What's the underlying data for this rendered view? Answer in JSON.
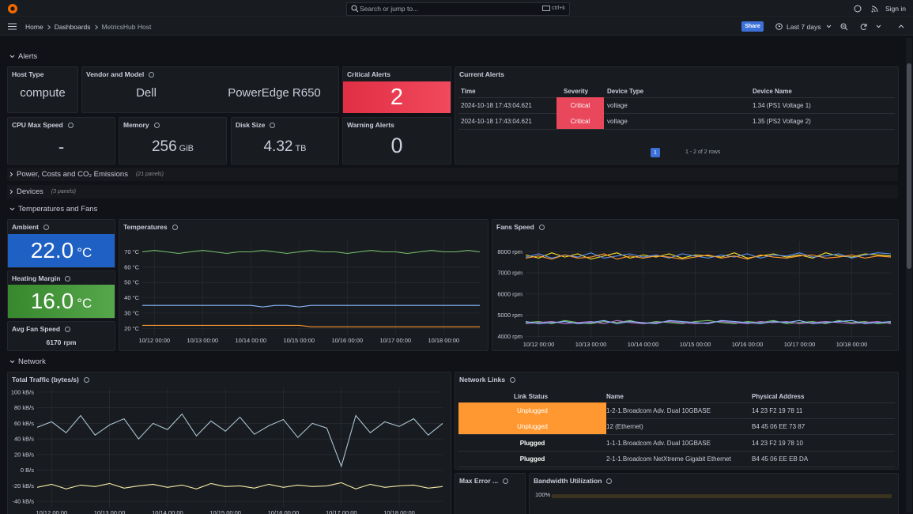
{
  "topbar": {
    "search": "Search or jump to...",
    "shortcut": "ctrl+k",
    "sign_in": "Sign in"
  },
  "breadcrumbs": [
    "Home",
    "Dashboards",
    "MetricsHub Host"
  ],
  "toolbar": {
    "share": "Share",
    "time_range": "Last 7 days"
  },
  "rows": [
    {
      "title": "Alerts"
    },
    {
      "title": "Power, Costs and CO₂ Emissions",
      "count": "(21 panels)"
    },
    {
      "title": "Devices",
      "count": "(3 panels)"
    },
    {
      "title": "Temperatures and Fans"
    },
    {
      "title": "Network"
    }
  ],
  "stats": {
    "host_type": {
      "title": "Host Type",
      "value": "compute"
    },
    "vendor": {
      "title": "Vendor and Model",
      "vendor": "Dell",
      "model": "PowerEdge R650"
    },
    "critical": {
      "title": "Critical Alerts",
      "value": 2
    },
    "warning": {
      "title": "Warning Alerts",
      "value": 0
    },
    "cpu": {
      "title": "CPU Max Speed",
      "value": "-"
    },
    "memory": {
      "title": "Memory",
      "value": 256,
      "unit": "GiB"
    },
    "disk": {
      "title": "Disk Size",
      "value": 4.32,
      "unit": "TB"
    },
    "ambient": {
      "title": "Ambient",
      "value": "22.0",
      "unit": "°C"
    },
    "heating": {
      "title": "Heating Margin",
      "value": "16.0",
      "unit": "°C"
    },
    "fan": {
      "title": "Avg Fan Speed",
      "value": 6170,
      "unit": "rpm"
    }
  },
  "current_alerts": {
    "title": "Current Alerts",
    "columns": [
      "Time",
      "Severity",
      "Device Type",
      "Device Name"
    ],
    "rows": [
      [
        "2024-10-18 17:43:04.621",
        "Critical",
        "voltage",
        "1.34 (PS1 Voltage 1)"
      ],
      [
        "2024-10-18 17:43:04.621",
        "Critical",
        "voltage",
        "1.35 (PS2 Voltage 2)"
      ]
    ],
    "cell_colors": {
      "Critical": "#e8475c"
    },
    "page": 1,
    "summary": "1 - 2 of 2 rows"
  },
  "network_links": {
    "title": "Network Links",
    "columns": [
      "Link Status",
      "Name",
      "Physical Address"
    ],
    "rows": [
      [
        "Unplugged",
        "1-2-1.Broadcom Adv. Dual 10GBASE",
        "14 23 F2 19 78 11"
      ],
      [
        "Unplugged",
        "12 (Ethernet)",
        "B4 45 06 EE 73 87"
      ],
      [
        "Plugged",
        "1-1-1.Broadcom Adv. Dual 10GBASE",
        "14 23 F2 19 78 10"
      ],
      [
        "Plugged",
        "2-1-1.Broadcom NetXtreme Gigabit Ethernet",
        "B4 45 06 EE EB DA"
      ]
    ],
    "cell_colors": {
      "Unplugged": "#ff9830"
    }
  },
  "max_error": {
    "title": "Max Error ..."
  },
  "bandwidth": {
    "title": "Bandwidth Utilization",
    "tick": "100%"
  },
  "chart_data": [
    {
      "type": "line",
      "title": "Temperatures",
      "grid": true,
      "x": [
        "10/11 18:00",
        "10/12 00:00",
        "10/12 06:00",
        "10/12 12:00",
        "10/12 18:00",
        "10/13 00:00",
        "10/13 06:00",
        "10/13 12:00",
        "10/13 18:00",
        "10/14 00:00",
        "10/14 06:00",
        "10/14 12:00",
        "10/14 18:00",
        "10/15 00:00",
        "10/15 06:00",
        "10/15 12:00",
        "10/15 18:00",
        "10/16 00:00",
        "10/16 06:00",
        "10/16 12:00",
        "10/16 18:00",
        "10/17 00:00",
        "10/17 06:00",
        "10/17 12:00",
        "10/17 18:00",
        "10/18 00:00",
        "10/18 06:00",
        "10/18 12:00",
        "10/18 18:00"
      ],
      "xticks": [
        "10/12 00:00",
        "10/13 00:00",
        "10/14 00:00",
        "10/15 00:00",
        "10/16 00:00",
        "10/17 00:00",
        "10/18 00:00"
      ],
      "ylim": [
        16,
        77
      ],
      "yticks": [
        {
          "value": 20,
          "label": "20 °C"
        },
        {
          "value": 30,
          "label": "30 °C"
        },
        {
          "value": 40,
          "label": "40 °C"
        },
        {
          "value": 50,
          "label": "50 °C"
        },
        {
          "value": 60,
          "label": "60 °C"
        },
        {
          "value": 70,
          "label": "70 °C"
        }
      ],
      "series": [
        {
          "color": "#73bf69",
          "values": [
            70,
            71,
            70,
            69,
            70,
            71,
            70,
            69,
            70,
            70,
            71,
            70,
            69,
            70,
            71,
            70,
            70,
            69,
            70,
            71,
            70,
            70,
            69,
            70,
            71,
            70,
            70,
            71,
            70
          ]
        },
        {
          "color": "#8ab8ff",
          "values": [
            35,
            35,
            35,
            35,
            35,
            35,
            35,
            35,
            35,
            35,
            34,
            35,
            35,
            34,
            35,
            35,
            35,
            35,
            35,
            35,
            35,
            35,
            35,
            35,
            35,
            35,
            35,
            35,
            35
          ]
        },
        {
          "color": "#ff9830",
          "values": [
            22,
            22,
            22,
            22,
            22,
            22,
            22,
            22,
            22,
            22,
            22,
            22,
            22,
            22,
            21,
            21,
            21,
            21,
            21,
            21,
            21,
            21,
            21,
            21,
            21,
            21,
            21,
            21,
            21
          ]
        }
      ]
    },
    {
      "type": "line",
      "title": "Fans Speed",
      "grid": true,
      "x": [
        "10/11 18:00",
        "10/12 00:00",
        "10/12 06:00",
        "10/12 12:00",
        "10/12 18:00",
        "10/13 00:00",
        "10/13 06:00",
        "10/13 12:00",
        "10/13 18:00",
        "10/14 00:00",
        "10/14 06:00",
        "10/14 12:00",
        "10/14 18:00",
        "10/15 00:00",
        "10/15 06:00",
        "10/15 12:00",
        "10/15 18:00",
        "10/16 00:00",
        "10/16 06:00",
        "10/16 12:00",
        "10/16 18:00",
        "10/17 00:00",
        "10/17 06:00",
        "10/17 12:00",
        "10/17 18:00",
        "10/18 00:00",
        "10/18 06:00",
        "10/18 12:00",
        "10/18 18:00"
      ],
      "xticks": [
        "10/12 00:00",
        "10/13 00:00",
        "10/14 00:00",
        "10/15 00:00",
        "10/16 00:00",
        "10/17 00:00",
        "10/18 00:00"
      ],
      "ylim": [
        3900,
        8500
      ],
      "yticks": [
        {
          "value": 4000,
          "label": "4000 rpm"
        },
        {
          "value": 5000,
          "label": "5000 rpm"
        },
        {
          "value": 6000,
          "label": "6000 rpm"
        },
        {
          "value": 7000,
          "label": "7000 rpm"
        },
        {
          "value": 8000,
          "label": "8000 rpm"
        }
      ],
      "series": [
        {
          "color": "#fade2a",
          "values": [
            7850,
            7700,
            7950,
            7750,
            7900,
            7650,
            7800,
            7950,
            7700,
            7850,
            7750,
            7900,
            7700,
            7850,
            7800,
            7750,
            7950,
            7700,
            7800,
            7900,
            7750,
            7850,
            7700,
            7950,
            7800,
            7750,
            7900,
            7850,
            7800
          ]
        },
        {
          "color": "#5794f2",
          "values": [
            7750,
            7900,
            7700,
            7850,
            7750,
            7950,
            7700,
            7800,
            7900,
            7750,
            7850,
            7700,
            7900,
            7800,
            7700,
            7850,
            7750,
            7900,
            7700,
            7850,
            7800,
            7950,
            7750,
            7800,
            7900,
            7700,
            7850,
            7950,
            7900
          ]
        },
        {
          "color": "#ff9830",
          "values": [
            7700,
            7800,
            7650,
            7850,
            7700,
            7750,
            7900,
            7650,
            7800,
            7700,
            7800,
            7750,
            7650,
            7750,
            7850,
            7700,
            7800,
            7650,
            7850,
            7750,
            7700,
            7800,
            7850,
            7700,
            7750,
            7850,
            7700,
            7800,
            7750
          ]
        },
        {
          "color": "#73bf69",
          "values": [
            4650,
            4700,
            4600,
            4750,
            4650,
            4600,
            4700,
            4650,
            4750,
            4600,
            4700,
            4650,
            4600,
            4700,
            4750,
            4650,
            4600,
            4700,
            4650,
            4750,
            4600,
            4650,
            4700,
            4600,
            4750,
            4650,
            4700,
            4600,
            4650
          ]
        },
        {
          "color": "#b877d9",
          "values": [
            4600,
            4650,
            4700,
            4600,
            4650,
            4700,
            4600,
            4750,
            4650,
            4600,
            4650,
            4700,
            4650,
            4600,
            4650,
            4700,
            4650,
            4600,
            4700,
            4650,
            4700,
            4600,
            4650,
            4700,
            4650,
            4600,
            4650,
            4700,
            4600
          ]
        },
        {
          "color": "#8ab8ff",
          "values": [
            4700,
            4600,
            4650,
            4700,
            4600,
            4650,
            4750,
            4600,
            4700,
            4650,
            4600,
            4750,
            4700,
            4650,
            4600,
            4750,
            4700,
            4650,
            4600,
            4700,
            4650,
            4750,
            4600,
            4650,
            4700,
            4750,
            4600,
            4650,
            4700
          ]
        }
      ]
    },
    {
      "type": "line",
      "title": "Total Traffic (bytes/s)",
      "grid": true,
      "x": [
        "10/11 18:00",
        "10/12 00:00",
        "10/12 06:00",
        "10/12 12:00",
        "10/12 18:00",
        "10/13 00:00",
        "10/13 06:00",
        "10/13 12:00",
        "10/13 18:00",
        "10/14 00:00",
        "10/14 06:00",
        "10/14 12:00",
        "10/14 18:00",
        "10/15 00:00",
        "10/15 06:00",
        "10/15 12:00",
        "10/15 18:00",
        "10/16 00:00",
        "10/16 06:00",
        "10/16 12:00",
        "10/16 18:00",
        "10/17 00:00",
        "10/17 06:00",
        "10/17 12:00",
        "10/17 18:00",
        "10/18 00:00",
        "10/18 06:00",
        "10/18 12:00",
        "10/18 18:00"
      ],
      "xticks": [
        "10/12 00:00",
        "10/13 00:00",
        "10/14 00:00",
        "10/15 00:00",
        "10/16 00:00",
        "10/17 00:00",
        "10/18 00:00"
      ],
      "ylim": [
        -47000,
        106000
      ],
      "yticks": [
        {
          "value": -40000,
          "label": "-40 kB/s"
        },
        {
          "value": -20000,
          "label": "-20 kB/s"
        },
        {
          "value": 0,
          "label": "0 B/s"
        },
        {
          "value": 20000,
          "label": "20 kB/s"
        },
        {
          "value": 40000,
          "label": "40 kB/s"
        },
        {
          "value": 60000,
          "label": "60 kB/s"
        },
        {
          "value": 80000,
          "label": "80 kB/s"
        },
        {
          "value": 100000,
          "label": "100 kB/s"
        }
      ],
      "series": [
        {
          "color": "#a9c3d1",
          "values": [
            55000,
            62000,
            48000,
            70000,
            45000,
            58000,
            66000,
            40000,
            60000,
            52000,
            72000,
            44000,
            63000,
            50000,
            68000,
            46000,
            57000,
            65000,
            42000,
            60000,
            54000,
            5000,
            70000,
            48000,
            62000,
            56000,
            66000,
            45000,
            60000
          ]
        },
        {
          "color": "#f2e8a6",
          "values": [
            -22000,
            -18000,
            -24000,
            -19000,
            -21000,
            -17000,
            -23000,
            -20000,
            -18000,
            -22000,
            -19000,
            -24000,
            -17000,
            -21000,
            -20000,
            -23000,
            -18000,
            -22000,
            -19000,
            -21000,
            -20000,
            -16000,
            -24000,
            -18000,
            -22000,
            -20000,
            -19000,
            -23000,
            -21000
          ]
        }
      ]
    }
  ]
}
